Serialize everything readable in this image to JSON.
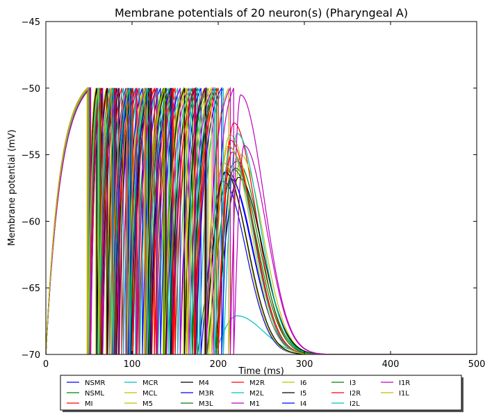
{
  "chart_data": {
    "type": "line",
    "title": "Membrane potentials of 20 neuron(s) (Pharyngeal A)",
    "xlabel": "Time (ms)",
    "ylabel": "Membrane potential (mV)",
    "xlim": [
      0,
      500
    ],
    "ylim": [
      -70,
      -45
    ],
    "xticks": [
      0,
      100,
      200,
      300,
      400,
      500
    ],
    "yticks": [
      -70,
      -65,
      -60,
      -55,
      -50,
      -45
    ],
    "grid": false,
    "legend_position": "bottom, below plot",
    "series": [
      {
        "name": "NSMR",
        "color": "#0000ff",
        "spikes": [
          50,
          62,
          78,
          96,
          116,
          138,
          160,
          184
        ],
        "peak": [
          210,
          -56.2
        ],
        "decay": 28
      },
      {
        "name": "NSML",
        "color": "#008000",
        "spikes": [
          52,
          66,
          84,
          104,
          126,
          150,
          176
        ],
        "peak": [
          222,
          -55.5
        ],
        "decay": 27
      },
      {
        "name": "MI",
        "color": "#ff0000",
        "spikes": [
          49,
          60,
          74,
          90,
          108,
          128,
          150,
          174,
          200
        ],
        "peak": [
          218,
          -52.6
        ],
        "decay": 26
      },
      {
        "name": "MCR",
        "color": "#00bfbf",
        "spikes": [
          50,
          64,
          82,
          104,
          130,
          160,
          196
        ],
        "peak": [
          222,
          -67.1
        ],
        "decay": 30
      },
      {
        "name": "MCL",
        "color": "#bfbf00",
        "spikes": [
          48,
          60,
          76,
          94,
          114,
          136,
          160,
          186,
          212
        ],
        "peak": [
          226,
          -55.0
        ],
        "decay": 26
      },
      {
        "name": "M5",
        "color": "#bfbf00",
        "spikes": [
          50,
          63,
          79,
          97,
          117,
          139,
          163,
          189
        ],
        "peak": [
          214,
          -53.5
        ],
        "decay": 26
      },
      {
        "name": "M4",
        "color": "#000000",
        "spikes": [
          51,
          65,
          82,
          101,
          122,
          145,
          170,
          196
        ],
        "peak": [
          224,
          -56.7
        ],
        "decay": 27
      },
      {
        "name": "M3R",
        "color": "#0000ff",
        "spikes": [
          49,
          61,
          76,
          93,
          112,
          133,
          156,
          180
        ],
        "peak": [
          206,
          -57.0
        ],
        "decay": 26
      },
      {
        "name": "M3L",
        "color": "#008000",
        "spikes": [
          50,
          62,
          77,
          95,
          115,
          137,
          161,
          187
        ],
        "peak": [
          220,
          -56.0
        ],
        "decay": 27
      },
      {
        "name": "M2R",
        "color": "#ff0000",
        "spikes": [
          48,
          59,
          72,
          88,
          106,
          126,
          148,
          172,
          198
        ],
        "peak": [
          216,
          -54.8
        ],
        "decay": 26
      },
      {
        "name": "M2L",
        "color": "#00bfbf",
        "spikes": [
          49,
          60,
          74,
          90,
          109,
          130,
          153,
          178,
          206
        ],
        "peak": [
          222,
          -53.4
        ],
        "decay": 26
      },
      {
        "name": "M1",
        "color": "#bf00bf",
        "spikes": [
          50,
          62,
          77,
          95,
          116,
          140,
          166,
          194,
          218
        ],
        "peak": [
          230,
          -54.3
        ],
        "decay": 26
      },
      {
        "name": "I6",
        "color": "#bfbf00",
        "spikes": [
          48,
          58,
          70,
          84,
          100,
          118,
          138,
          160,
          184
        ],
        "peak": [
          206,
          -55.6
        ],
        "decay": 26
      },
      {
        "name": "I5",
        "color": "#000000",
        "spikes": [
          49,
          59,
          71,
          85,
          101,
          119,
          139,
          161,
          185
        ],
        "peak": [
          208,
          -56.3
        ],
        "decay": 26
      },
      {
        "name": "I4",
        "color": "#0000ff",
        "spikes": [
          51,
          64,
          80,
          99,
          121,
          146,
          174,
          204
        ],
        "peak": [
          214,
          -56.8
        ],
        "decay": 26
      },
      {
        "name": "I3",
        "color": "#008000",
        "spikes": [
          50,
          63,
          79,
          98,
          120,
          144,
          170,
          198
        ],
        "peak": [
          218,
          -56.1
        ],
        "decay": 27
      },
      {
        "name": "I2R",
        "color": "#ff0000",
        "spikes": [
          51,
          64,
          81,
          101,
          123,
          147,
          173,
          200
        ],
        "peak": [
          214,
          -53.9
        ],
        "decay": 26
      },
      {
        "name": "I2L",
        "color": "#00bfbf",
        "spikes": [
          50,
          62,
          78,
          97,
          118,
          142,
          168,
          196
        ],
        "peak": [
          214,
          -54.5
        ],
        "decay": 26
      },
      {
        "name": "I1R",
        "color": "#bf00bf",
        "spikes": [
          52,
          66,
          84,
          105,
          129,
          156,
          186,
          214
        ],
        "peak": [
          226,
          -50.5
        ],
        "decay": 27
      },
      {
        "name": "I1L",
        "color": "#bfbf00",
        "spikes": [
          49,
          61,
          76,
          94,
          115,
          138,
          164,
          192
        ],
        "peak": [
          212,
          -54.3
        ],
        "decay": 26
      }
    ]
  }
}
